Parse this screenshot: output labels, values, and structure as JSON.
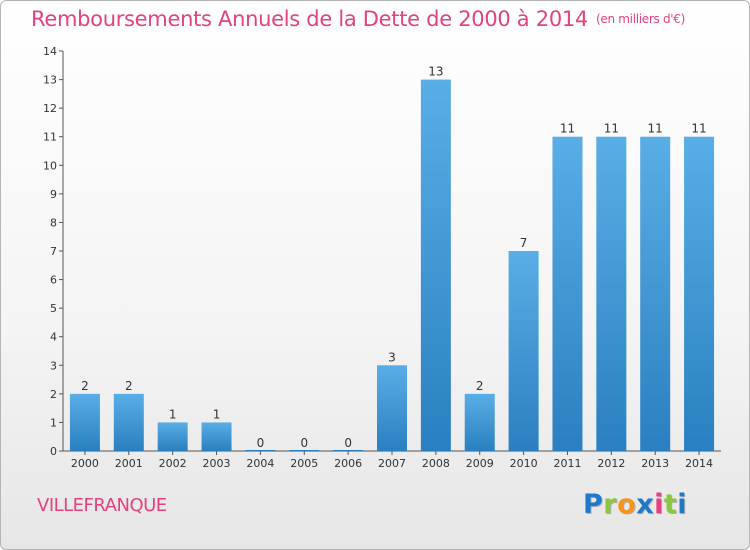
{
  "title": "Remboursements Annuels de la Dette de 2000 à 2014",
  "unit_note": "(en milliers d'€)",
  "place_name": "VILLEFRANQUE",
  "logo": {
    "letters": [
      "P",
      "r",
      "o",
      "x",
      "i",
      "t",
      "i"
    ],
    "colors": [
      "#1f78c8",
      "#8cc63f",
      "#f7941d",
      "#1f78c8",
      "#e3417f",
      "#8cc63f",
      "#1f78c8"
    ]
  },
  "colors": {
    "accent": "#e3417f",
    "bar_light": "#5aaee6",
    "bar_dark": "#2a7fc0",
    "axis": "#555555"
  },
  "chart_data": {
    "type": "bar",
    "title": "Remboursements Annuels de la Dette de 2000 à 2014",
    "subtitle": "(en milliers d'€)",
    "xlabel": "",
    "ylabel": "",
    "categories": [
      "2000",
      "2001",
      "2002",
      "2003",
      "2004",
      "2005",
      "2006",
      "2007",
      "2008",
      "2009",
      "2010",
      "2011",
      "2012",
      "2013",
      "2014"
    ],
    "values": [
      2,
      2,
      1,
      1,
      0,
      0,
      0,
      3,
      13,
      2,
      7,
      11,
      11,
      11,
      11
    ],
    "ylim": [
      0,
      14
    ],
    "yticks": [
      0,
      1,
      2,
      3,
      4,
      5,
      6,
      7,
      8,
      9,
      10,
      11,
      12,
      13,
      14
    ],
    "grid": false,
    "legend": "none"
  }
}
